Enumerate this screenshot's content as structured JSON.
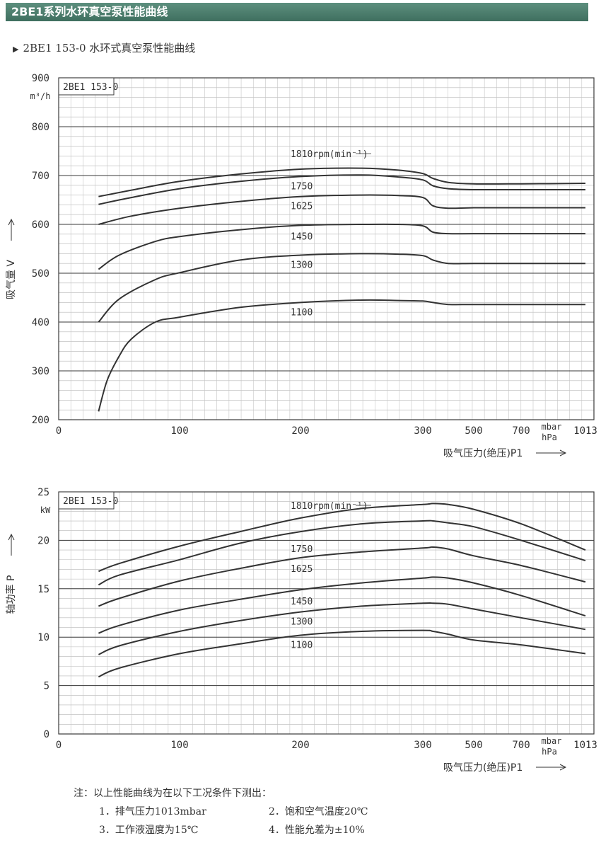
{
  "header": {
    "title": "2BE1系列水环真空泵性能曲线"
  },
  "subtitle": {
    "marker": "▶",
    "text": "2BE1 153-0 水环式真空泵性能曲线"
  },
  "charts": [
    {
      "id": "flow",
      "box_label": "2BE1 153-0",
      "ylabel": "吸气量 V",
      "yunit": "m³/h",
      "xlabel": "吸气压力(绝压)P1",
      "x_ticks": [
        "0",
        "100",
        "200",
        "300",
        "500",
        "700",
        "1013"
      ],
      "x_unit_line1": "mbar",
      "x_unit_line2": "hPa",
      "y_ticks": [
        "200",
        "300",
        "400",
        "500",
        "600",
        "700",
        "800",
        "900"
      ],
      "series_labels": [
        "1810rpm(min⁻¹)",
        "1750",
        "1625",
        "1450",
        "1300",
        "1100"
      ]
    },
    {
      "id": "power",
      "box_label": "2BE1 153-0",
      "ylabel": "轴功率 P",
      "yunit": "kW",
      "xlabel": "吸气压力(绝压)P1",
      "x_ticks": [
        "0",
        "100",
        "200",
        "300",
        "500",
        "700",
        "1013"
      ],
      "x_unit_line1": "mbar",
      "x_unit_line2": "hPa",
      "y_ticks": [
        "0",
        "5",
        "10",
        "15",
        "20",
        "25"
      ],
      "series_labels": [
        "1810rpm(min⁻¹)",
        "1750",
        "1625",
        "1450",
        "1300",
        "1100"
      ]
    }
  ],
  "chart_data": [
    {
      "type": "line",
      "xlabel": "吸气压力(绝压)P1",
      "ylabel": "吸气量 V",
      "x_ticks": [
        "0",
        "100",
        "200",
        "300",
        "500",
        "700",
        "1013"
      ],
      "ylim": [
        200,
        900
      ],
      "grid": true,
      "series": [
        {
          "name": "1810rpm(min⁻¹)",
          "x": [
            33,
            60,
            100,
            150,
            200,
            250,
            280,
            300,
            340,
            400,
            500,
            700,
            1013
          ],
          "y": [
            657,
            670,
            688,
            703,
            713,
            715,
            711,
            704,
            694,
            686,
            683,
            683,
            684
          ]
        },
        {
          "name": "1750",
          "x": [
            33,
            60,
            100,
            150,
            200,
            250,
            280,
            300,
            340,
            400,
            500,
            700,
            1013
          ],
          "y": [
            641,
            655,
            673,
            688,
            698,
            701,
            697,
            691,
            679,
            673,
            671,
            671,
            671
          ]
        },
        {
          "name": "1625",
          "x": [
            33,
            60,
            100,
            150,
            200,
            250,
            280,
            300,
            340,
            400,
            500,
            700,
            1013
          ],
          "y": [
            600,
            617,
            633,
            647,
            657,
            660,
            659,
            655,
            638,
            633,
            634,
            634,
            634
          ]
        },
        {
          "name": "1450",
          "x": [
            33,
            50,
            80,
            100,
            150,
            200,
            250,
            280,
            300,
            340,
            400,
            500,
            700,
            1013
          ],
          "y": [
            508,
            537,
            565,
            575,
            589,
            598,
            600,
            600,
            597,
            584,
            581,
            581,
            581,
            581
          ]
        },
        {
          "name": "1300",
          "x": [
            33,
            50,
            80,
            100,
            150,
            200,
            250,
            280,
            300,
            340,
            400,
            500,
            700,
            1013
          ],
          "y": [
            400,
            447,
            487,
            501,
            527,
            537,
            540,
            539,
            536,
            527,
            520,
            520,
            520,
            520
          ]
        },
        {
          "name": "1100",
          "x": [
            33,
            40,
            50,
            60,
            80,
            100,
            150,
            200,
            250,
            280,
            300,
            340,
            400,
            500,
            700,
            1013
          ],
          "y": [
            217,
            280,
            330,
            365,
            400,
            410,
            430,
            440,
            445,
            444,
            443,
            440,
            436,
            436,
            436,
            436
          ]
        }
      ]
    },
    {
      "type": "line",
      "xlabel": "吸气压力(绝压)P1",
      "ylabel": "轴功率 P",
      "x_ticks": [
        "0",
        "100",
        "200",
        "300",
        "500",
        "700",
        "1013"
      ],
      "ylim": [
        0,
        25
      ],
      "grid": true,
      "series": [
        {
          "name": "1810rpm(min⁻¹)",
          "x": [
            33,
            50,
            100,
            150,
            200,
            250,
            300,
            340,
            400,
            500,
            700,
            1013
          ],
          "y": [
            16.8,
            17.6,
            19.4,
            20.9,
            22.3,
            23.3,
            23.7,
            23.8,
            23.7,
            23.2,
            21.7,
            19.0
          ]
        },
        {
          "name": "1750",
          "x": [
            33,
            50,
            100,
            150,
            200,
            250,
            300,
            340,
            400,
            500,
            700,
            1013
          ],
          "y": [
            15.4,
            16.4,
            18.0,
            19.7,
            20.9,
            21.7,
            22.0,
            22.0,
            21.8,
            21.4,
            20.0,
            17.9
          ]
        },
        {
          "name": "1625",
          "x": [
            33,
            50,
            100,
            150,
            200,
            250,
            300,
            340,
            400,
            500,
            700,
            1013
          ],
          "y": [
            13.2,
            14.0,
            15.8,
            17.1,
            18.2,
            18.8,
            19.2,
            19.3,
            19.1,
            18.4,
            17.4,
            15.7
          ]
        },
        {
          "name": "1450",
          "x": [
            33,
            50,
            100,
            150,
            200,
            250,
            300,
            340,
            400,
            500,
            700,
            1013
          ],
          "y": [
            10.4,
            11.2,
            12.8,
            13.9,
            14.9,
            15.6,
            16.1,
            16.2,
            16.1,
            15.6,
            14.3,
            12.2
          ]
        },
        {
          "name": "1300",
          "x": [
            33,
            50,
            100,
            150,
            200,
            250,
            300,
            340,
            400,
            500,
            700,
            1013
          ],
          "y": [
            8.2,
            9.1,
            10.6,
            11.7,
            12.6,
            13.2,
            13.5,
            13.5,
            13.4,
            12.9,
            12.0,
            10.8
          ]
        },
        {
          "name": "1100",
          "x": [
            33,
            50,
            100,
            150,
            200,
            250,
            300,
            340,
            400,
            500,
            700,
            1013
          ],
          "y": [
            5.9,
            6.8,
            8.3,
            9.3,
            10.2,
            10.6,
            10.7,
            10.6,
            10.3,
            9.7,
            9.2,
            8.3
          ]
        }
      ]
    }
  ],
  "notes": {
    "heading": "注：以上性能曲线为在以下工况条件下测出：",
    "items": [
      "1．排气压力1013mbar",
      "2．饱和空气温度20℃",
      "3．工作液温度为15℃",
      "4．性能允差为±10%"
    ]
  }
}
